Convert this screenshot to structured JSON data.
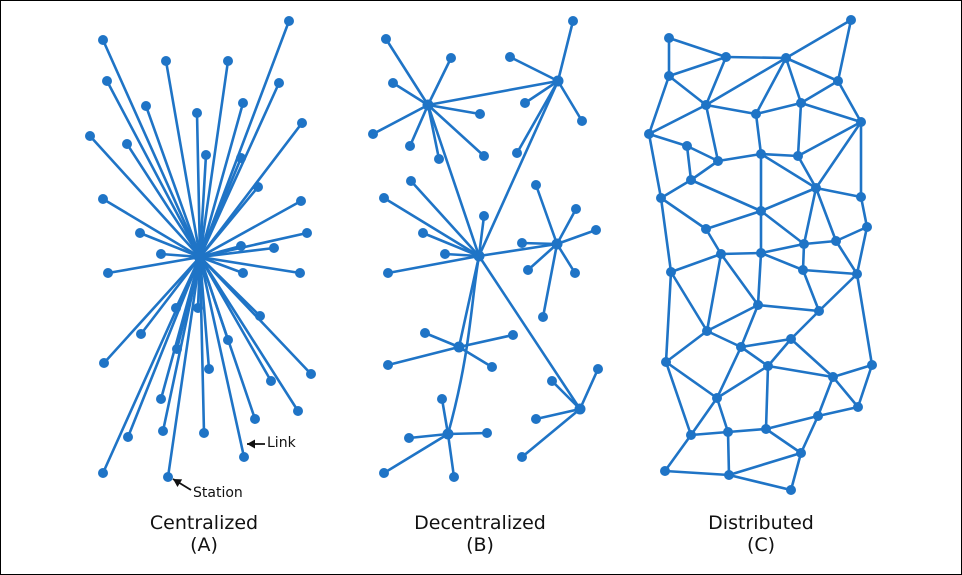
{
  "colors": {
    "network": "#1f74c6",
    "text": "#111111",
    "border": "#000000"
  },
  "panels": [
    {
      "title": "Centralized",
      "letter": "(A)"
    },
    {
      "title": "Decentralized",
      "letter": "(B)"
    },
    {
      "title": "Distributed",
      "letter": "(C)"
    }
  ],
  "annotations": {
    "link": "Link",
    "station": "Station"
  }
}
